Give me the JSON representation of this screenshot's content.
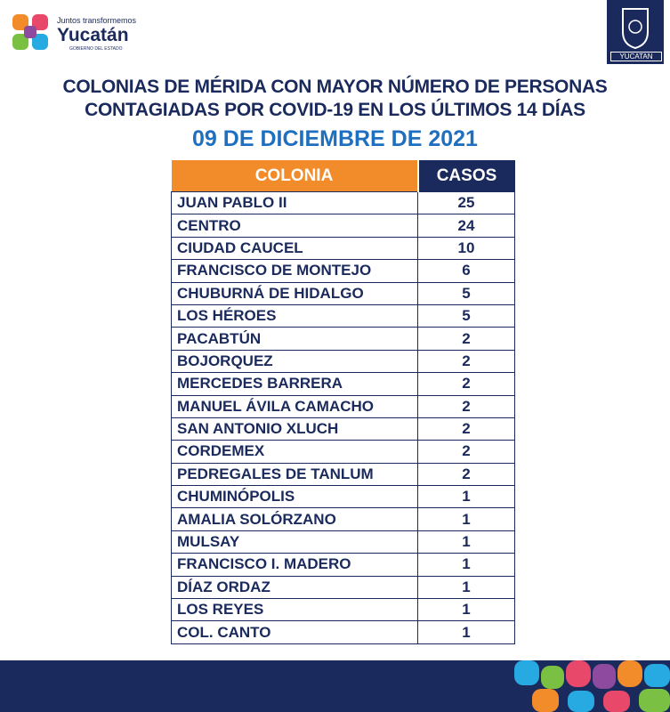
{
  "header": {
    "logo_tagline": "Juntos transformemos",
    "logo_name": "Yucatán",
    "logo_sub": "GOBIERNO DEL ESTADO",
    "crest_label": "YUCATAN"
  },
  "title_lines": [
    "COLONIAS DE MÉRIDA CON MAYOR NÚMERO DE PERSONAS",
    "CONTAGIADAS POR COVID-19 EN LOS ÚLTIMOS 14 DÍAS"
  ],
  "date": "09 DE DICIEMBRE DE 2021",
  "table": {
    "columns": [
      "COLONIA",
      "CASOS"
    ],
    "rows": [
      [
        "JUAN PABLO II",
        25
      ],
      [
        "CENTRO",
        24
      ],
      [
        "CIUDAD CAUCEL",
        10
      ],
      [
        "FRANCISCO DE MONTEJO",
        6
      ],
      [
        "CHUBURNÁ DE HIDALGO",
        5
      ],
      [
        "LOS HÉROES",
        5
      ],
      [
        "PACABTÚN",
        2
      ],
      [
        "BOJORQUEZ",
        2
      ],
      [
        "MERCEDES BARRERA",
        2
      ],
      [
        "MANUEL ÁVILA CAMACHO",
        2
      ],
      [
        "SAN ANTONIO XLUCH",
        2
      ],
      [
        "CORDEMEX",
        2
      ],
      [
        "PEDREGALES DE TANLUM",
        2
      ],
      [
        "CHUMINÓPOLIS",
        1
      ],
      [
        "AMALIA SOLÓRZANO",
        1
      ],
      [
        "MULSAY",
        1
      ],
      [
        "FRANCISCO I. MADERO",
        1
      ],
      [
        "DÍAZ ORDAZ",
        1
      ],
      [
        "LOS REYES",
        1
      ],
      [
        "COL. CANTO",
        1
      ]
    ]
  }
}
